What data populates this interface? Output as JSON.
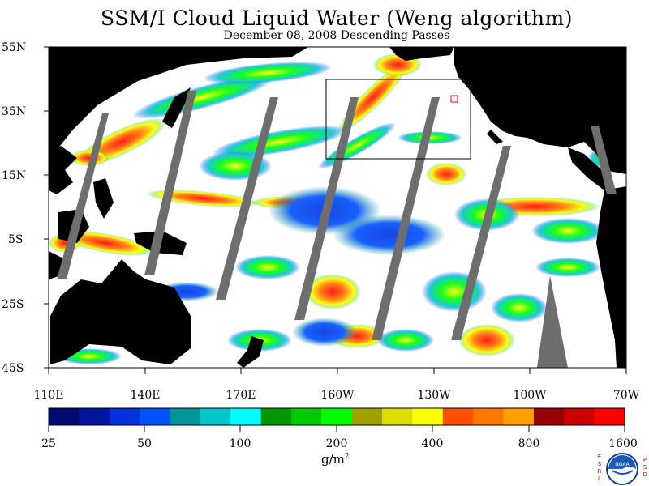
{
  "title": "SSM/I Cloud Liquid Water (Weng algorithm)",
  "subtitle": "December 08, 2008  Descending Passes",
  "latitude_labels": [
    "55N",
    "35N",
    "15N",
    "5S",
    "25S",
    "45S"
  ],
  "longitude_labels": [
    "110E",
    "140E",
    "170E",
    "160W",
    "130W",
    "100W",
    "70W"
  ],
  "colorbar": {
    "colors": [
      "#000a6e",
      "#0014a0",
      "#0032dc",
      "#0050ff",
      "#009696",
      "#00c8c8",
      "#00ffff",
      "#009600",
      "#00c800",
      "#00ff00",
      "#a0a000",
      "#dcdc00",
      "#ffff00",
      "#ff5000",
      "#ff7800",
      "#ffa000",
      "#960000",
      "#c80000",
      "#ff0000"
    ],
    "tick_labels": [
      "25",
      "50",
      "100",
      "200",
      "400",
      "800",
      "1600"
    ],
    "unit": "g/m",
    "unit_superscript": "2"
  },
  "logo": {
    "left_letters": [
      "E",
      "S",
      "R",
      "L"
    ],
    "right_letters": [
      "P",
      "S",
      "D"
    ],
    "emblem_text": "NOAA"
  }
}
